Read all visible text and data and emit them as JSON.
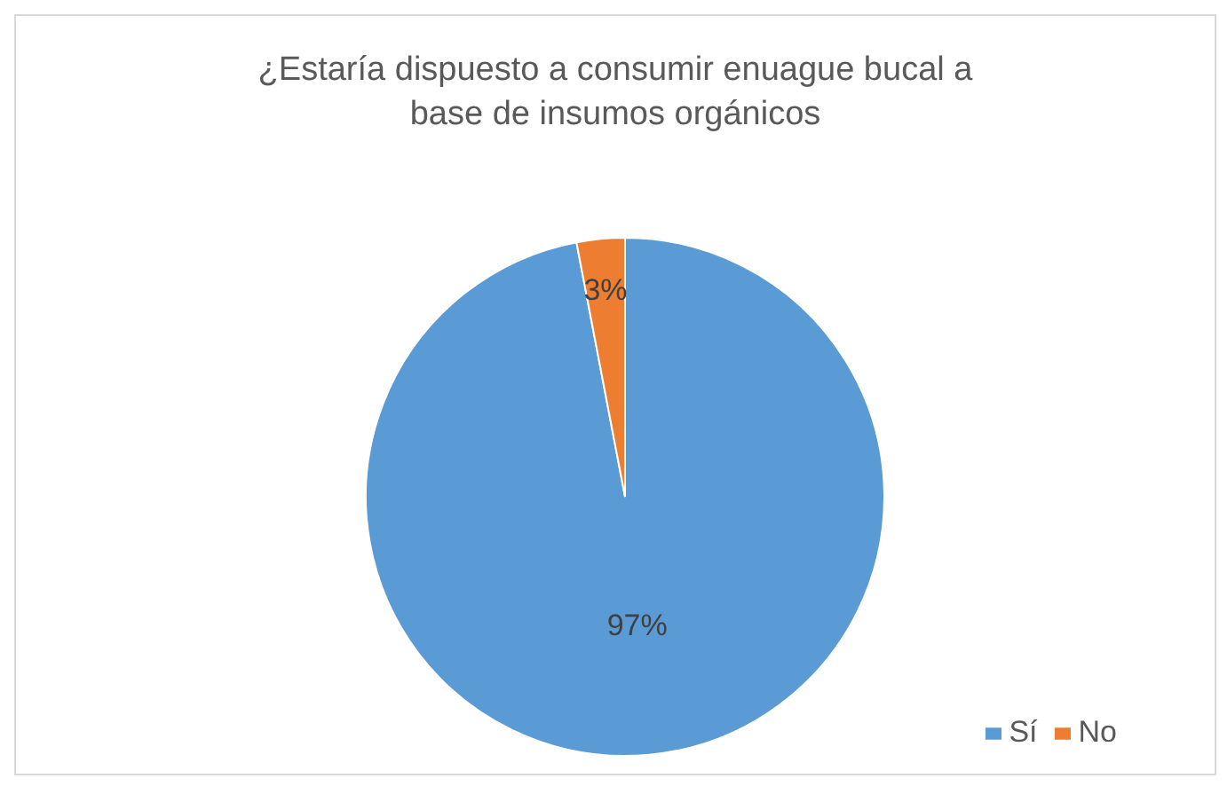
{
  "chart_data": {
    "type": "pie",
    "title": "¿Estaría dispuesto a consumir enuague bucal a base de insumos orgánicos",
    "categories": [
      "Sí",
      "No"
    ],
    "values": [
      97,
      3
    ],
    "colors": [
      "#5b9bd5",
      "#ed7d31"
    ],
    "value_labels": [
      "97%",
      "3%"
    ],
    "legend": "bottom right"
  }
}
